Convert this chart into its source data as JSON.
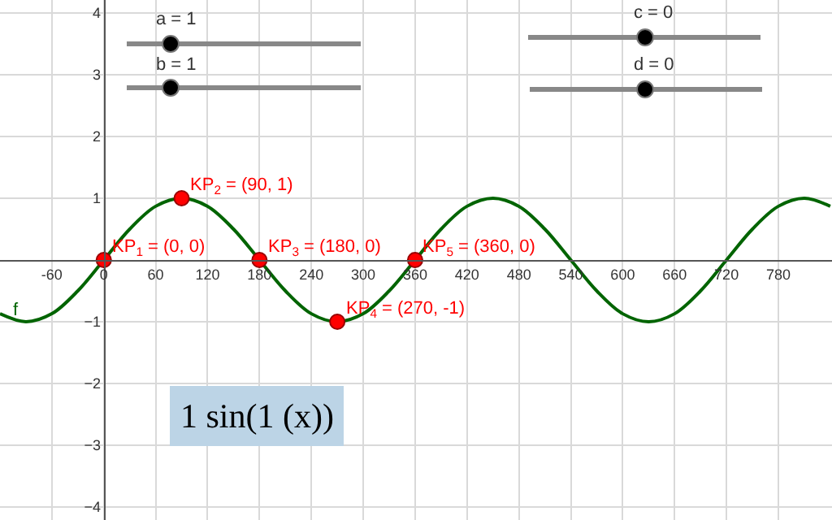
{
  "chart_data": {
    "type": "line",
    "x": [
      -120,
      -90,
      -60,
      -30,
      0,
      30,
      60,
      90,
      120,
      150,
      180,
      210,
      240,
      270,
      300,
      330,
      360,
      390,
      420,
      450,
      480,
      510,
      540,
      570,
      600,
      630,
      660,
      690,
      720,
      750,
      780,
      810,
      840
    ],
    "series": [
      {
        "color": "#006400",
        "values": [
          -0.87,
          -1,
          -0.87,
          -0.5,
          0,
          0.5,
          0.87,
          1,
          0.87,
          0.5,
          0,
          -0.5,
          -0.87,
          -1,
          -0.87,
          -0.5,
          0,
          0.5,
          0.87,
          1,
          0.87,
          0.5,
          0,
          -0.5,
          -0.87,
          -1,
          -0.87,
          -0.5,
          0,
          0.5,
          0.87,
          1,
          0.87
        ]
      },
      {
        "type": "scatter",
        "color": "#ff0000",
        "marker": "circle",
        "x": [
          0,
          90,
          180,
          270,
          360
        ],
        "values": [
          0,
          1,
          0,
          -1,
          0
        ]
      }
    ],
    "xlim": [
      -120,
      842
    ],
    "ylim": [
      -4.21,
      4.21
    ],
    "xticks": [
      -60,
      0,
      60,
      120,
      180,
      240,
      300,
      360,
      420,
      480,
      540,
      600,
      660,
      720,
      780
    ],
    "yticks": [
      {
        "value": -4,
        "label": "−4"
      },
      {
        "value": -3,
        "label": "−3"
      },
      {
        "value": -2,
        "label": "−2"
      },
      {
        "value": -1,
        "label": "−1"
      },
      1,
      2,
      3,
      4
    ],
    "grid": true,
    "annotations": [
      {
        "text": "KP$_{1}$ = (0, 0)",
        "x": 0,
        "y": 0
      },
      {
        "text": "KP$_{2}$ = (90, 1)",
        "x": 90,
        "y": 1
      },
      {
        "text": "KP$_{3}$ = (180, 0)",
        "x": 180,
        "y": 0
      },
      {
        "text": "KP$_{4}$ = (270, -1)",
        "x": 270,
        "y": -1
      },
      {
        "text": "KP$_{5}$ = (360, 0)",
        "x": 360,
        "y": 0
      },
      {
        "text": "f",
        "x": -115,
        "y": -1
      },
      "a = 1",
      "b = 1",
      "c = 0",
      "d = 0",
      "1 sin(1 (x))"
    ]
  }
}
